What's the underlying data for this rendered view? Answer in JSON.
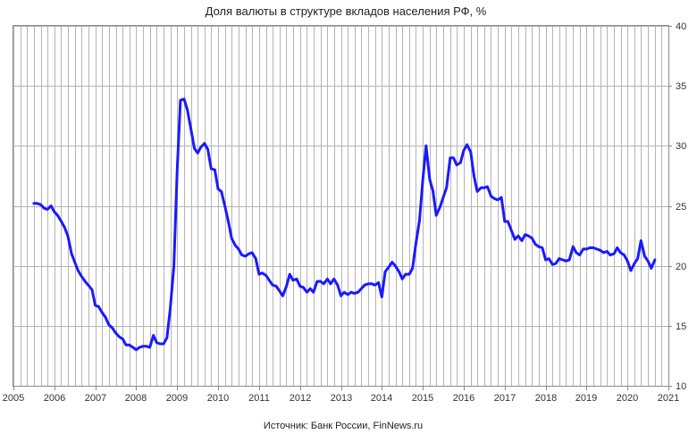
{
  "chart_data": {
    "type": "line",
    "title": "Доля валюты в структуре вкладов населения РФ, %",
    "source": "Источник: Банк России, FinNews.ru",
    "xlabel": "",
    "ylabel": "",
    "xlim": [
      2005,
      2021
    ],
    "ylim": [
      10,
      40
    ],
    "x_ticks": [
      "2005",
      "2006",
      "2007",
      "2008",
      "2009",
      "2010",
      "2011",
      "2012",
      "2013",
      "2014",
      "2015",
      "2016",
      "2017",
      "2018",
      "2019",
      "2020",
      "2021"
    ],
    "y_ticks": [
      "10",
      "15",
      "20",
      "25",
      "30",
      "35",
      "40"
    ],
    "y_axis_side": "right",
    "grid": "on",
    "line_color": "#1a1aff",
    "series": [
      {
        "name": "",
        "values": [
          [
            2005.5,
            25.2
          ],
          [
            2005.58,
            25.2
          ],
          [
            2005.67,
            25.1
          ],
          [
            2005.75,
            24.8
          ],
          [
            2005.83,
            24.7
          ],
          [
            2005.92,
            25.0
          ],
          [
            2006.0,
            24.5
          ],
          [
            2006.08,
            24.2
          ],
          [
            2006.17,
            23.7
          ],
          [
            2006.25,
            23.2
          ],
          [
            2006.33,
            22.5
          ],
          [
            2006.42,
            21.0
          ],
          [
            2006.5,
            20.3
          ],
          [
            2006.58,
            19.6
          ],
          [
            2006.67,
            19.1
          ],
          [
            2006.75,
            18.7
          ],
          [
            2006.83,
            18.4
          ],
          [
            2006.92,
            18.0
          ],
          [
            2007.0,
            16.7
          ],
          [
            2007.08,
            16.6
          ],
          [
            2007.17,
            16.1
          ],
          [
            2007.25,
            15.7
          ],
          [
            2007.33,
            15.1
          ],
          [
            2007.42,
            14.8
          ],
          [
            2007.5,
            14.4
          ],
          [
            2007.58,
            14.1
          ],
          [
            2007.67,
            13.9
          ],
          [
            2007.75,
            13.4
          ],
          [
            2007.83,
            13.4
          ],
          [
            2007.92,
            13.2
          ],
          [
            2008.0,
            13.0
          ],
          [
            2008.08,
            13.2
          ],
          [
            2008.17,
            13.3
          ],
          [
            2008.25,
            13.3
          ],
          [
            2008.33,
            13.2
          ],
          [
            2008.42,
            14.2
          ],
          [
            2008.5,
            13.6
          ],
          [
            2008.58,
            13.5
          ],
          [
            2008.67,
            13.5
          ],
          [
            2008.75,
            14.0
          ],
          [
            2008.83,
            16.4
          ],
          [
            2008.92,
            20.0
          ],
          [
            2009.0,
            28.0
          ],
          [
            2009.08,
            33.8
          ],
          [
            2009.17,
            33.9
          ],
          [
            2009.25,
            33.0
          ],
          [
            2009.33,
            31.5
          ],
          [
            2009.42,
            29.8
          ],
          [
            2009.5,
            29.4
          ],
          [
            2009.58,
            29.9
          ],
          [
            2009.67,
            30.2
          ],
          [
            2009.75,
            29.7
          ],
          [
            2009.83,
            28.1
          ],
          [
            2009.92,
            28.0
          ],
          [
            2010.0,
            26.4
          ],
          [
            2010.08,
            26.2
          ],
          [
            2010.17,
            24.9
          ],
          [
            2010.25,
            23.7
          ],
          [
            2010.33,
            22.3
          ],
          [
            2010.42,
            21.7
          ],
          [
            2010.5,
            21.4
          ],
          [
            2010.58,
            20.9
          ],
          [
            2010.67,
            20.8
          ],
          [
            2010.75,
            21.0
          ],
          [
            2010.83,
            21.1
          ],
          [
            2010.92,
            20.6
          ],
          [
            2011.0,
            19.3
          ],
          [
            2011.08,
            19.4
          ],
          [
            2011.17,
            19.2
          ],
          [
            2011.25,
            18.8
          ],
          [
            2011.33,
            18.4
          ],
          [
            2011.42,
            18.3
          ],
          [
            2011.5,
            17.9
          ],
          [
            2011.58,
            17.5
          ],
          [
            2011.67,
            18.3
          ],
          [
            2011.75,
            19.3
          ],
          [
            2011.83,
            18.8
          ],
          [
            2011.92,
            18.9
          ],
          [
            2012.0,
            18.3
          ],
          [
            2012.08,
            18.2
          ],
          [
            2012.17,
            17.8
          ],
          [
            2012.25,
            18.1
          ],
          [
            2012.33,
            17.8
          ],
          [
            2012.42,
            18.7
          ],
          [
            2012.5,
            18.7
          ],
          [
            2012.58,
            18.5
          ],
          [
            2012.67,
            18.9
          ],
          [
            2012.75,
            18.5
          ],
          [
            2012.83,
            18.9
          ],
          [
            2012.92,
            18.4
          ],
          [
            2013.0,
            17.5
          ],
          [
            2013.08,
            17.8
          ],
          [
            2013.17,
            17.6
          ],
          [
            2013.25,
            17.8
          ],
          [
            2013.33,
            17.7
          ],
          [
            2013.42,
            17.8
          ],
          [
            2013.5,
            18.1
          ],
          [
            2013.58,
            18.4
          ],
          [
            2013.67,
            18.5
          ],
          [
            2013.75,
            18.5
          ],
          [
            2013.83,
            18.4
          ],
          [
            2013.92,
            18.6
          ],
          [
            2014.0,
            17.4
          ],
          [
            2014.08,
            19.5
          ],
          [
            2014.17,
            19.9
          ],
          [
            2014.25,
            20.3
          ],
          [
            2014.33,
            20.0
          ],
          [
            2014.42,
            19.5
          ],
          [
            2014.5,
            18.9
          ],
          [
            2014.58,
            19.3
          ],
          [
            2014.67,
            19.3
          ],
          [
            2014.75,
            19.8
          ],
          [
            2014.83,
            21.8
          ],
          [
            2014.92,
            23.8
          ],
          [
            2015.0,
            27.1
          ],
          [
            2015.08,
            30.0
          ],
          [
            2015.17,
            27.2
          ],
          [
            2015.25,
            26.2
          ],
          [
            2015.33,
            24.2
          ],
          [
            2015.42,
            24.9
          ],
          [
            2015.5,
            25.7
          ],
          [
            2015.58,
            26.5
          ],
          [
            2015.67,
            29.0
          ],
          [
            2015.75,
            29.0
          ],
          [
            2015.83,
            28.4
          ],
          [
            2015.92,
            28.6
          ],
          [
            2016.0,
            29.6
          ],
          [
            2016.08,
            30.1
          ],
          [
            2016.17,
            29.5
          ],
          [
            2016.25,
            27.5
          ],
          [
            2016.33,
            26.2
          ],
          [
            2016.42,
            26.5
          ],
          [
            2016.5,
            26.5
          ],
          [
            2016.58,
            26.6
          ],
          [
            2016.67,
            25.8
          ],
          [
            2016.75,
            25.6
          ],
          [
            2016.83,
            25.5
          ],
          [
            2016.92,
            25.7
          ],
          [
            2017.0,
            23.7
          ],
          [
            2017.08,
            23.7
          ],
          [
            2017.17,
            22.9
          ],
          [
            2017.25,
            22.2
          ],
          [
            2017.33,
            22.5
          ],
          [
            2017.42,
            22.1
          ],
          [
            2017.5,
            22.6
          ],
          [
            2017.58,
            22.5
          ],
          [
            2017.67,
            22.3
          ],
          [
            2017.75,
            21.8
          ],
          [
            2017.83,
            21.6
          ],
          [
            2017.92,
            21.5
          ],
          [
            2018.0,
            20.5
          ],
          [
            2018.08,
            20.6
          ],
          [
            2018.17,
            20.1
          ],
          [
            2018.25,
            20.2
          ],
          [
            2018.33,
            20.6
          ],
          [
            2018.42,
            20.5
          ],
          [
            2018.5,
            20.4
          ],
          [
            2018.58,
            20.5
          ],
          [
            2018.67,
            21.6
          ],
          [
            2018.75,
            21.1
          ],
          [
            2018.83,
            20.9
          ],
          [
            2018.92,
            21.4
          ],
          [
            2019.0,
            21.4
          ],
          [
            2019.08,
            21.5
          ],
          [
            2019.17,
            21.5
          ],
          [
            2019.25,
            21.4
          ],
          [
            2019.33,
            21.3
          ],
          [
            2019.42,
            21.1
          ],
          [
            2019.5,
            21.2
          ],
          [
            2019.58,
            20.9
          ],
          [
            2019.67,
            21.0
          ],
          [
            2019.75,
            21.5
          ],
          [
            2019.83,
            21.1
          ],
          [
            2019.92,
            20.9
          ],
          [
            2020.0,
            20.4
          ],
          [
            2020.08,
            19.6
          ],
          [
            2020.17,
            20.2
          ],
          [
            2020.25,
            20.6
          ],
          [
            2020.33,
            22.1
          ],
          [
            2020.42,
            20.8
          ],
          [
            2020.5,
            20.4
          ],
          [
            2020.58,
            19.8
          ],
          [
            2020.67,
            20.5
          ]
        ]
      }
    ]
  }
}
